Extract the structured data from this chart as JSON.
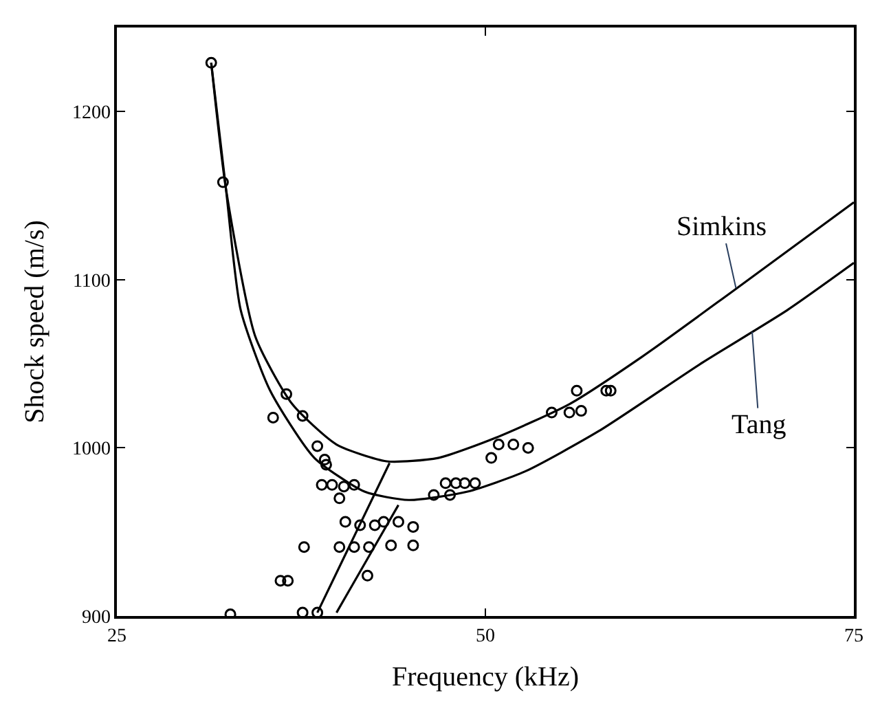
{
  "chart_data": {
    "type": "line",
    "xlabel": "Frequency (kHz)",
    "ylabel": "Shock speed (m/s)",
    "xlim": [
      25,
      75
    ],
    "xticks": [
      25,
      50,
      75
    ],
    "ylim": [
      900,
      1250
    ],
    "yticks": [
      900,
      1000,
      1100,
      1200
    ],
    "series": [
      {
        "color": "#000000",
        "x": [
          31.4,
          32.4,
          34.4,
          36.9,
          39.9,
          43.3,
          46.8,
          50.7,
          55.7,
          60.6,
          66.6,
          75
        ],
        "values": [
          1229,
          1154,
          1066,
          1026,
          1002,
          992,
          994,
          1006,
          1026,
          1054,
          1092,
          1146
        ]
      },
      {
        "color": "#000000",
        "x": [
          31.4,
          32.4,
          33.4,
          35.4,
          38.4,
          41.8,
          44.8,
          48.8,
          52.7,
          57.7,
          64.6,
          70.5,
          75
        ],
        "values": [
          1229,
          1154,
          1082,
          1034,
          994,
          974,
          969,
          974,
          986,
          1010,
          1050,
          1082,
          1110
        ]
      },
      {
        "color": "#000000",
        "x": [
          38.6,
          43.5
        ],
        "values": [
          902,
          991
        ]
      },
      {
        "color": "#000000",
        "x": [
          39.9,
          44.1
        ],
        "values": [
          902,
          966
        ]
      },
      {
        "type": "scatter",
        "marker": "circle",
        "color": "#000000",
        "x": [
          31.4,
          32.2,
          36.5,
          35.6,
          37.6,
          38.6,
          39.1,
          39.2,
          38.9,
          39.6,
          40.4,
          41.1,
          40.1,
          40.5,
          41.5,
          42.5,
          43.1,
          44.1,
          45.1,
          37.7,
          40.1,
          41.1,
          42.1,
          43.6,
          45.1,
          36.1,
          36.6,
          42.0,
          32.7,
          37.6,
          38.6,
          46.5,
          47.3,
          48.0,
          48.6,
          49.3,
          47.6,
          50.4,
          50.9,
          51.9,
          52.9,
          54.5,
          55.7,
          56.5,
          56.2,
          58.2,
          58.5
        ],
        "values": [
          1229,
          1158,
          1032,
          1018,
          1019,
          1001,
          993,
          990,
          978,
          978,
          977,
          978,
          970,
          956,
          954,
          954,
          956,
          956,
          953,
          941,
          941,
          941,
          941,
          942,
          942,
          921,
          921,
          924,
          901,
          902,
          902,
          972,
          979,
          979,
          979,
          979,
          972,
          994,
          1002,
          1002,
          1000,
          1021,
          1021,
          1022,
          1034,
          1034,
          1034
        ]
      }
    ],
    "annotations": [
      {
        "text": "Simkins",
        "x": 67.0,
        "y": 1095
      },
      {
        "text": "Tang",
        "x": 68.1,
        "y": 1069
      }
    ]
  }
}
